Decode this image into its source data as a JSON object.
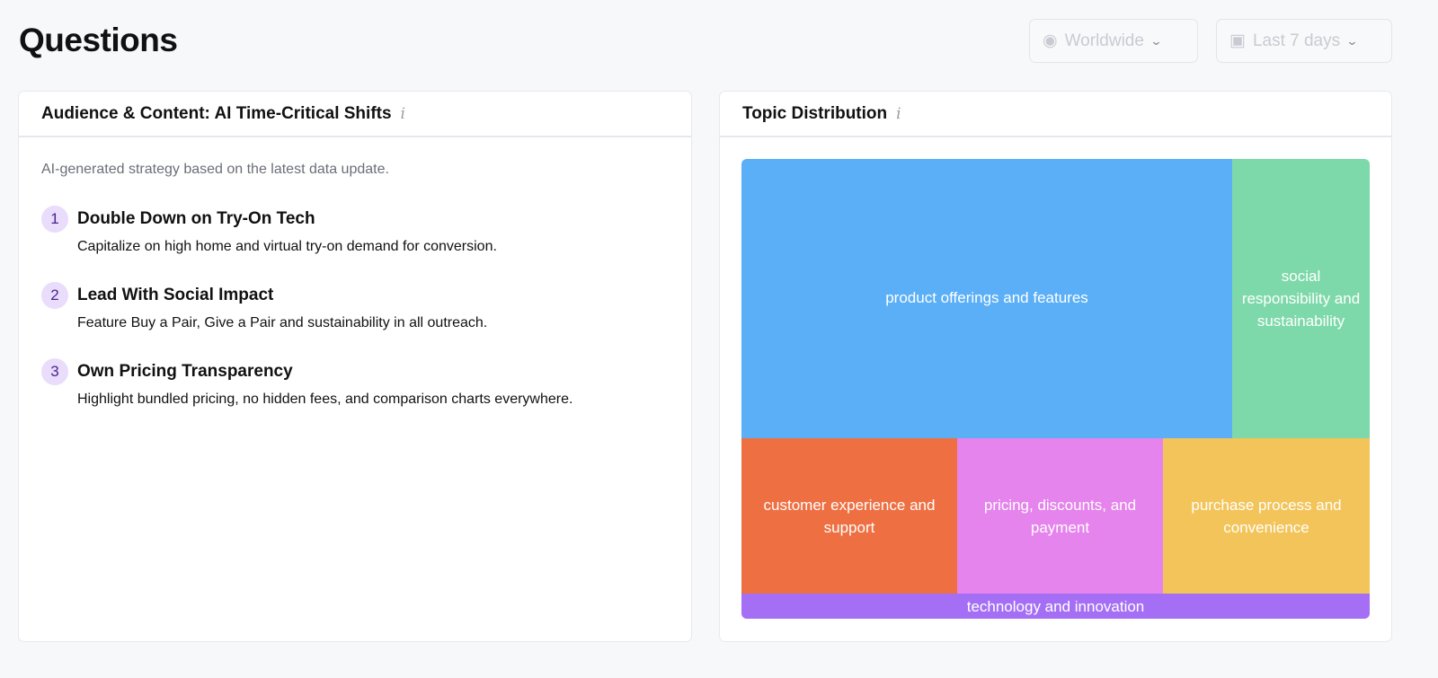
{
  "page": {
    "title": "Questions"
  },
  "filters": {
    "region": "Worldwide",
    "period": "Last 7 days"
  },
  "strategy_card": {
    "title": "Audience & Content: AI Time-Critical Shifts",
    "subtitle": "AI-generated strategy based on the latest data update.",
    "items": [
      {
        "num": "1",
        "title": "Double Down on Try-On Tech",
        "desc": "Capitalize on high home and virtual try-on demand for conversion."
      },
      {
        "num": "2",
        "title": "Lead With Social Impact",
        "desc": "Feature Buy a Pair, Give a Pair and sustainability in all outreach."
      },
      {
        "num": "3",
        "title": "Own Pricing Transparency",
        "desc": "Highlight bundled pricing, no hidden fees, and comparison charts everywhere."
      }
    ]
  },
  "topic_card": {
    "title": "Topic Distribution",
    "topics": [
      {
        "label": "product offerings and features",
        "color": "#5aaff7"
      },
      {
        "label": "social responsibility and sustainability",
        "color": "#7ed9aa"
      },
      {
        "label": "customer experience and support",
        "color": "#ee7042"
      },
      {
        "label": "pricing, discounts, and payment",
        "color": "#e584ec"
      },
      {
        "label": "purchase process and convenience",
        "color": "#f3c45a"
      },
      {
        "label": "technology and innovation",
        "color": "#a56ff5"
      }
    ]
  }
}
